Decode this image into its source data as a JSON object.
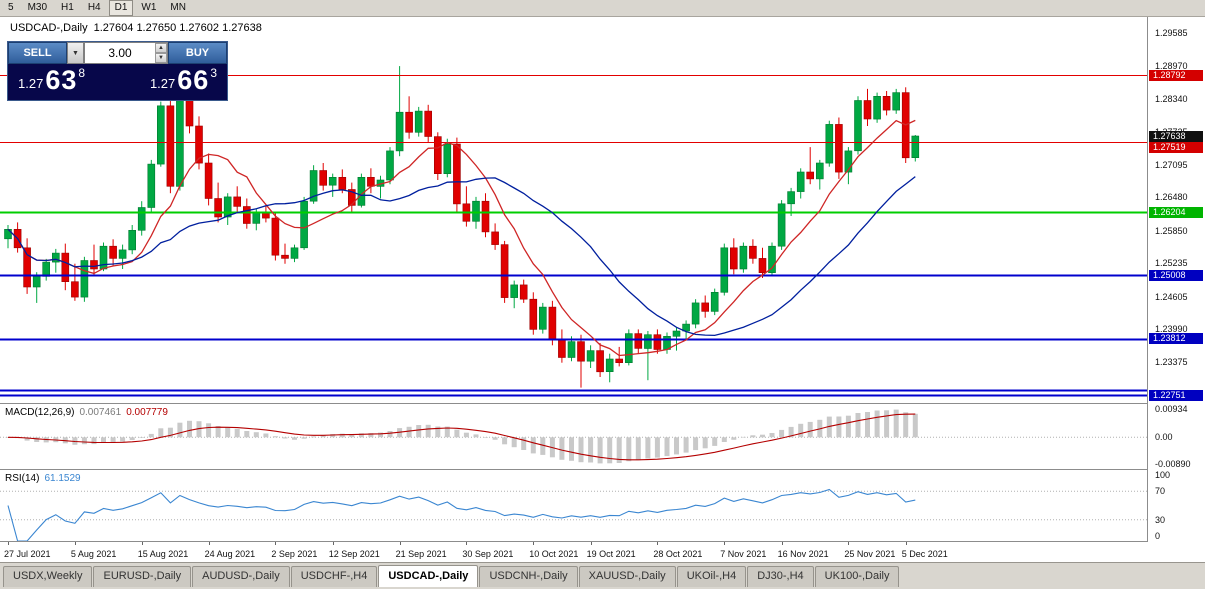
{
  "toolbar": {
    "timeframes": [
      {
        "label": "5",
        "active": false
      },
      {
        "label": "M30",
        "active": false
      },
      {
        "label": "H1",
        "active": false
      },
      {
        "label": "H4",
        "active": false
      },
      {
        "label": "D1",
        "active": true
      },
      {
        "label": "W1",
        "active": false
      },
      {
        "label": "MN",
        "active": false
      }
    ]
  },
  "header": {
    "symbol": "USDCAD-,Daily",
    "ohlc": "1.27604 1.27650 1.27602 1.27638"
  },
  "trade_panel": {
    "sell_label": "SELL",
    "buy_label": "BUY",
    "volume": "3.00",
    "sell_price_prefix": "1.27",
    "sell_price_big": "63",
    "sell_price_sup": "8",
    "buy_price_prefix": "1.27",
    "buy_price_big": "66",
    "buy_price_sup": "3",
    "dropdown_glyph": "▼",
    "spin_up_glyph": "▲",
    "spin_down_glyph": "▼"
  },
  "colors": {
    "bull": "#00a843",
    "bull_edge": "#00782f",
    "bear": "#e00000",
    "bear_edge": "#9c0000",
    "panel_bg": "#07074a",
    "macd_bar": "#c9c9c9",
    "macd_signal": "#b40000",
    "rsi_line": "#3a86d1",
    "grid_dotted": "#b0b0b0"
  },
  "chart_data": {
    "type": "candlestick",
    "symbol": "USDCAD-,Daily",
    "price_axis": {
      "min": 1.226,
      "max": 1.29887,
      "ticks": [
        "1.29585",
        "1.28970",
        "1.28340",
        "1.27725",
        "1.27095",
        "1.26480",
        "1.25850",
        "1.25235",
        "1.24605",
        "1.23990",
        "1.23375"
      ],
      "badges": [
        {
          "text": "1.28792",
          "price": 1.28792,
          "bg": "#d40000"
        },
        {
          "text": "1.27638",
          "price": 1.27638,
          "bg": "#101010"
        },
        {
          "text": "1.27519",
          "price": 1.27519,
          "bg": "#d40000"
        },
        {
          "text": "1.26204",
          "price": 1.26204,
          "bg": "#00b400"
        },
        {
          "text": "1.25008",
          "price": 1.25008,
          "bg": "#0000c0"
        },
        {
          "text": "1.23812",
          "price": 1.23812,
          "bg": "#0000c0"
        },
        {
          "text": "1.22751",
          "price": 1.22751,
          "bg": "#0000c0"
        }
      ]
    },
    "levels": [
      {
        "price": 1.28792,
        "color": "#e30000",
        "w": 1
      },
      {
        "price": 1.27519,
        "color": "#e30000",
        "w": 1
      },
      {
        "price": 1.26204,
        "color": "#00ce00",
        "w": 2
      },
      {
        "price": 1.25008,
        "color": "#0000cd",
        "w": 2
      },
      {
        "price": 1.23812,
        "color": "#0000cd",
        "w": 2
      },
      {
        "price": 1.22845,
        "color": "#0000cd",
        "w": 2
      },
      {
        "price": 1.22751,
        "color": "#0000cd",
        "w": 2
      }
    ],
    "ma": [
      {
        "name": "ma-fast",
        "period": 8,
        "color": "#cf2626"
      },
      {
        "name": "ma-slow",
        "period": 21,
        "color": "#001f9e"
      }
    ],
    "macd": {
      "label": "MACD(12,26,9)",
      "value_main": "0.007461",
      "value_signal": "0.007779",
      "fast": 12,
      "slow": 26,
      "signal": 9,
      "range": {
        "min": -0.0105,
        "max": 0.011
      },
      "ticks": [
        {
          "text": "0.00934",
          "v": 0.00934
        },
        {
          "text": "0.00",
          "v": 0
        },
        {
          "text": "-0.00890",
          "v": -0.0089
        }
      ]
    },
    "rsi": {
      "label": "RSI(14)",
      "value": "61.1529",
      "period": 14,
      "levels": [
        70,
        30
      ],
      "ticks": [
        {
          "text": "100",
          "v": 100
        },
        {
          "text": "70",
          "v": 70
        },
        {
          "text": "30",
          "v": 30
        },
        {
          "text": "0",
          "v": 0
        }
      ]
    },
    "date_labels": [
      {
        "text": "27 Jul 2021",
        "i": 0
      },
      {
        "text": "5 Aug 2021",
        "i": 7
      },
      {
        "text": "15 Aug 2021",
        "i": 14
      },
      {
        "text": "24 Aug 2021",
        "i": 21
      },
      {
        "text": "2 Sep 2021",
        "i": 28
      },
      {
        "text": "12 Sep 2021",
        "i": 34
      },
      {
        "text": "21 Sep 2021",
        "i": 41
      },
      {
        "text": "30 Sep 2021",
        "i": 48
      },
      {
        "text": "10 Oct 2021",
        "i": 55
      },
      {
        "text": "19 Oct 2021",
        "i": 61
      },
      {
        "text": "28 Oct 2021",
        "i": 68
      },
      {
        "text": "7 Nov 2021",
        "i": 75
      },
      {
        "text": "16 Nov 2021",
        "i": 81
      },
      {
        "text": "25 Nov 2021",
        "i": 88
      },
      {
        "text": "5 Dec 2021",
        "i": 94
      }
    ],
    "candles": [
      [
        1.257,
        1.2596,
        1.2552,
        1.2588
      ],
      [
        1.2588,
        1.2601,
        1.2544,
        1.2553
      ],
      [
        1.2553,
        1.2571,
        1.2466,
        1.2479
      ],
      [
        1.2479,
        1.2507,
        1.2449,
        1.2499
      ],
      [
        1.2499,
        1.2532,
        1.2491,
        1.2526
      ],
      [
        1.2526,
        1.2551,
        1.2506,
        1.2543
      ],
      [
        1.2543,
        1.2561,
        1.2473,
        1.2489
      ],
      [
        1.2489,
        1.2523,
        1.2453,
        1.246
      ],
      [
        1.246,
        1.2536,
        1.2451,
        1.2529
      ],
      [
        1.2529,
        1.2559,
        1.2499,
        1.2513
      ],
      [
        1.2513,
        1.2563,
        1.2509,
        1.2556
      ],
      [
        1.2556,
        1.2569,
        1.2519,
        1.2533
      ],
      [
        1.2533,
        1.2559,
        1.2513,
        1.2549
      ],
      [
        1.2549,
        1.2596,
        1.2541,
        1.2586
      ],
      [
        1.2586,
        1.2641,
        1.2576,
        1.2629
      ],
      [
        1.2629,
        1.2719,
        1.2619,
        1.2711
      ],
      [
        1.2711,
        1.2829,
        1.2706,
        1.2821
      ],
      [
        1.2821,
        1.2841,
        1.2656,
        1.2669
      ],
      [
        1.2669,
        1.2881,
        1.2661,
        1.2863
      ],
      [
        1.2863,
        1.2886,
        1.2769,
        1.2783
      ],
      [
        1.2783,
        1.2801,
        1.2701,
        1.2713
      ],
      [
        1.2713,
        1.2731,
        1.2633,
        1.2646
      ],
      [
        1.2646,
        1.2676,
        1.2601,
        1.2611
      ],
      [
        1.2611,
        1.2656,
        1.2596,
        1.2649
      ],
      [
        1.2649,
        1.2669,
        1.2621,
        1.2631
      ],
      [
        1.2631,
        1.2646,
        1.2589,
        1.2599
      ],
      [
        1.2599,
        1.2626,
        1.2586,
        1.2619
      ],
      [
        1.2619,
        1.2633,
        1.2601,
        1.2609
      ],
      [
        1.2609,
        1.2619,
        1.2529,
        1.2539
      ],
      [
        1.2539,
        1.2561,
        1.2523,
        1.2533
      ],
      [
        1.2533,
        1.2559,
        1.2526,
        1.2553
      ],
      [
        1.2553,
        1.2649,
        1.2549,
        1.2641
      ],
      [
        1.2641,
        1.2709,
        1.2636,
        1.2699
      ],
      [
        1.2699,
        1.2713,
        1.2661,
        1.2671
      ],
      [
        1.2671,
        1.2693,
        1.2649,
        1.2686
      ],
      [
        1.2686,
        1.2701,
        1.2656,
        1.2663
      ],
      [
        1.2663,
        1.2676,
        1.2621,
        1.2633
      ],
      [
        1.2633,
        1.2693,
        1.2629,
        1.2686
      ],
      [
        1.2686,
        1.2703,
        1.2656,
        1.2669
      ],
      [
        1.2669,
        1.2689,
        1.2646,
        1.2681
      ],
      [
        1.2681,
        1.2743,
        1.2673,
        1.2736
      ],
      [
        1.2736,
        1.2896,
        1.2726,
        1.2809
      ],
      [
        1.2809,
        1.2839,
        1.2759,
        1.2771
      ],
      [
        1.2771,
        1.2819,
        1.2763,
        1.2811
      ],
      [
        1.2811,
        1.2823,
        1.2753,
        1.2763
      ],
      [
        1.2763,
        1.2771,
        1.2681,
        1.2693
      ],
      [
        1.2693,
        1.2759,
        1.2686,
        1.2749
      ],
      [
        1.2749,
        1.2761,
        1.2621,
        1.2636
      ],
      [
        1.2636,
        1.2669,
        1.2593,
        1.2603
      ],
      [
        1.2603,
        1.2649,
        1.2589,
        1.2641
      ],
      [
        1.2641,
        1.2656,
        1.2573,
        1.2583
      ],
      [
        1.2583,
        1.2599,
        1.2549,
        1.2559
      ],
      [
        1.2559,
        1.2566,
        1.2449,
        1.2459
      ],
      [
        1.2459,
        1.2491,
        1.2439,
        1.2483
      ],
      [
        1.2483,
        1.2493,
        1.2449,
        1.2456
      ],
      [
        1.2456,
        1.2469,
        1.2389,
        1.2399
      ],
      [
        1.2399,
        1.2449,
        1.2391,
        1.2441
      ],
      [
        1.2441,
        1.2453,
        1.2369,
        1.2379
      ],
      [
        1.2379,
        1.2399,
        1.2336,
        1.2346
      ],
      [
        1.2346,
        1.2386,
        1.2339,
        1.2376
      ],
      [
        1.2376,
        1.2389,
        1.2289,
        1.2339
      ],
      [
        1.2339,
        1.2369,
        1.2326,
        1.2359
      ],
      [
        1.2359,
        1.2373,
        1.2309,
        1.2319
      ],
      [
        1.2319,
        1.2353,
        1.2299,
        1.2343
      ],
      [
        1.2343,
        1.2366,
        1.2329,
        1.2336
      ],
      [
        1.2336,
        1.2399,
        1.2331,
        1.2391
      ],
      [
        1.2391,
        1.2399,
        1.2353,
        1.2363
      ],
      [
        1.2363,
        1.2396,
        1.2303,
        1.2389
      ],
      [
        1.2389,
        1.2399,
        1.2353,
        1.2361
      ],
      [
        1.2361,
        1.2393,
        1.2353,
        1.2386
      ],
      [
        1.2386,
        1.2403,
        1.2359,
        1.2396
      ],
      [
        1.2396,
        1.2416,
        1.2381,
        1.2409
      ],
      [
        1.2409,
        1.2456,
        1.2401,
        1.2449
      ],
      [
        1.2449,
        1.2463,
        1.2421,
        1.2433
      ],
      [
        1.2433,
        1.2476,
        1.2426,
        1.2469
      ],
      [
        1.2469,
        1.2561,
        1.2463,
        1.2553
      ],
      [
        1.2553,
        1.2571,
        1.2503,
        1.2513
      ],
      [
        1.2513,
        1.2563,
        1.2506,
        1.2556
      ],
      [
        1.2556,
        1.2569,
        1.2523,
        1.2533
      ],
      [
        1.2533,
        1.2553,
        1.2496,
        1.2506
      ],
      [
        1.2506,
        1.2563,
        1.2499,
        1.2556
      ],
      [
        1.2556,
        1.2643,
        1.2549,
        1.2636
      ],
      [
        1.2636,
        1.2666,
        1.2613,
        1.2659
      ],
      [
        1.2659,
        1.2703,
        1.2646,
        1.2696
      ],
      [
        1.2696,
        1.2743,
        1.2673,
        1.2683
      ],
      [
        1.2683,
        1.2719,
        1.2663,
        1.2713
      ],
      [
        1.2713,
        1.2793,
        1.2706,
        1.2786
      ],
      [
        1.2786,
        1.2799,
        1.2683,
        1.2696
      ],
      [
        1.2696,
        1.2743,
        1.2673,
        1.2736
      ],
      [
        1.2736,
        1.2839,
        1.2729,
        1.2831
      ],
      [
        1.2831,
        1.2853,
        1.2783,
        1.2796
      ],
      [
        1.2796,
        1.2846,
        1.2789,
        1.2839
      ],
      [
        1.2839,
        1.2849,
        1.2803,
        1.2813
      ],
      [
        1.2813,
        1.2853,
        1.2806,
        1.2846
      ],
      [
        1.2846,
        1.2856,
        1.2713,
        1.2723
      ],
      [
        1.2723,
        1.2766,
        1.2716,
        1.2764
      ]
    ]
  },
  "tabs": {
    "items": [
      {
        "label": "USDX,Weekly",
        "active": false
      },
      {
        "label": "EURUSD-,Daily",
        "active": false
      },
      {
        "label": "AUDUSD-,Daily",
        "active": false
      },
      {
        "label": "USDCHF-,H4",
        "active": false
      },
      {
        "label": "USDCAD-,Daily",
        "active": true
      },
      {
        "label": "USDCNH-,Daily",
        "active": false
      },
      {
        "label": "XAUUSD-,Daily",
        "active": false
      },
      {
        "label": "UKOil-,H4",
        "active": false
      },
      {
        "label": "DJ30-,H4",
        "active": false
      },
      {
        "label": "UK100-,Daily",
        "active": false
      }
    ]
  }
}
